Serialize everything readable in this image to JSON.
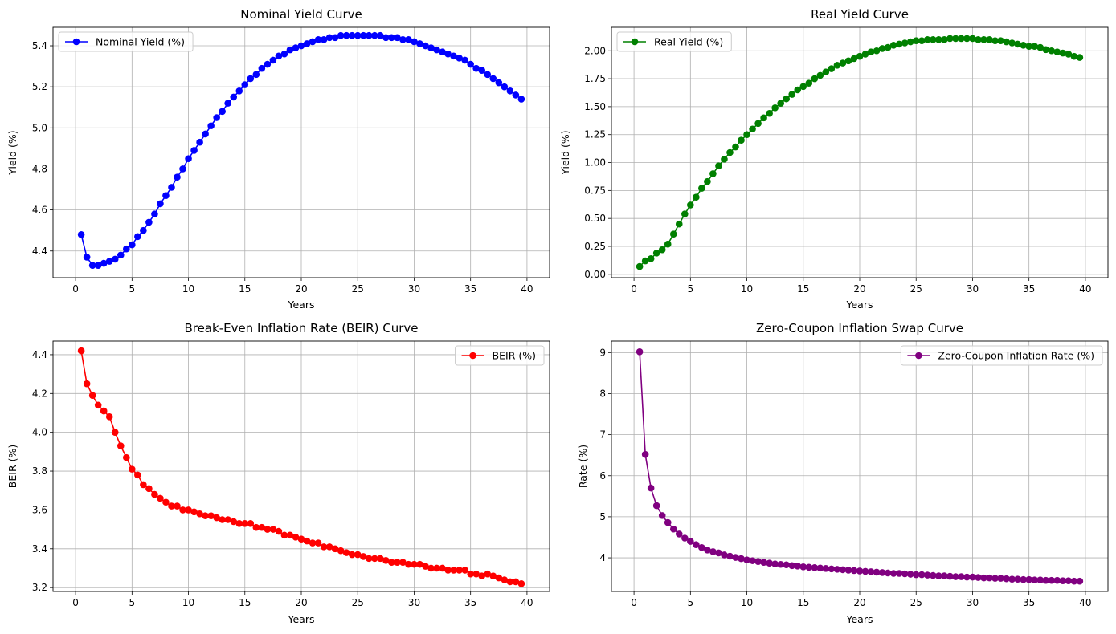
{
  "figure": {
    "charts": [
      {
        "type": "line",
        "title": "Nominal Yield Curve",
        "xlabel": "Years",
        "ylabel": "Yield (%)",
        "color": "#0000ff",
        "legend": "Nominal Yield (%)",
        "legend_position": "upper-left",
        "xlim": [
          -2,
          42
        ],
        "ylim": [
          4.27,
          5.49
        ],
        "xticks": [
          0,
          5,
          10,
          15,
          20,
          25,
          30,
          35,
          40
        ],
        "yticks": [
          4.4,
          4.6,
          4.8,
          5.0,
          5.2,
          5.4
        ],
        "ytick_labels": [
          "4.4",
          "4.6",
          "4.8",
          "5.0",
          "5.2",
          "5.4"
        ],
        "grid": true,
        "x": [
          0.5,
          1,
          1.5,
          2,
          2.5,
          3,
          3.5,
          4,
          4.5,
          5,
          5.5,
          6,
          6.5,
          7,
          7.5,
          8,
          8.5,
          9,
          9.5,
          10,
          10.5,
          11,
          11.5,
          12,
          12.5,
          13,
          13.5,
          14,
          14.5,
          15,
          15.5,
          16,
          16.5,
          17,
          17.5,
          18,
          18.5,
          19,
          19.5,
          20,
          20.5,
          21,
          21.5,
          22,
          22.5,
          23,
          23.5,
          24,
          24.5,
          25,
          25.5,
          26,
          26.5,
          27,
          27.5,
          28,
          28.5,
          29,
          29.5,
          30,
          30.5,
          31,
          31.5,
          32,
          32.5,
          33,
          33.5,
          34,
          34.5,
          35,
          35.5,
          36,
          36.5,
          37,
          37.5,
          38,
          38.5,
          39,
          39.5
        ],
        "y": [
          4.48,
          4.37,
          4.33,
          4.33,
          4.34,
          4.35,
          4.36,
          4.38,
          4.41,
          4.43,
          4.47,
          4.5,
          4.54,
          4.58,
          4.63,
          4.67,
          4.71,
          4.76,
          4.8,
          4.85,
          4.89,
          4.93,
          4.97,
          5.01,
          5.05,
          5.08,
          5.12,
          5.15,
          5.18,
          5.21,
          5.24,
          5.26,
          5.29,
          5.31,
          5.33,
          5.35,
          5.36,
          5.38,
          5.39,
          5.4,
          5.41,
          5.42,
          5.43,
          5.43,
          5.44,
          5.44,
          5.45,
          5.45,
          5.45,
          5.45,
          5.45,
          5.45,
          5.45,
          5.45,
          5.44,
          5.44,
          5.44,
          5.43,
          5.43,
          5.42,
          5.41,
          5.4,
          5.39,
          5.38,
          5.37,
          5.36,
          5.35,
          5.34,
          5.33,
          5.31,
          5.29,
          5.28,
          5.26,
          5.24,
          5.22,
          5.2,
          5.18,
          5.16,
          5.14
        ]
      },
      {
        "type": "line",
        "title": "Real Yield Curve",
        "xlabel": "Years",
        "ylabel": "Yield (%)",
        "color": "#008000",
        "legend": "Real Yield (%)",
        "legend_position": "upper-left",
        "xlim": [
          -2,
          42
        ],
        "ylim": [
          -0.03,
          2.21
        ],
        "xticks": [
          0,
          5,
          10,
          15,
          20,
          25,
          30,
          35,
          40
        ],
        "yticks": [
          0.0,
          0.25,
          0.5,
          0.75,
          1.0,
          1.25,
          1.5,
          1.75,
          2.0
        ],
        "ytick_labels": [
          "0.00",
          "0.25",
          "0.50",
          "0.75",
          "1.00",
          "1.25",
          "1.50",
          "1.75",
          "2.00"
        ],
        "grid": true,
        "x": [
          0.5,
          1,
          1.5,
          2,
          2.5,
          3,
          3.5,
          4,
          4.5,
          5,
          5.5,
          6,
          6.5,
          7,
          7.5,
          8,
          8.5,
          9,
          9.5,
          10,
          10.5,
          11,
          11.5,
          12,
          12.5,
          13,
          13.5,
          14,
          14.5,
          15,
          15.5,
          16,
          16.5,
          17,
          17.5,
          18,
          18.5,
          19,
          19.5,
          20,
          20.5,
          21,
          21.5,
          22,
          22.5,
          23,
          23.5,
          24,
          24.5,
          25,
          25.5,
          26,
          26.5,
          27,
          27.5,
          28,
          28.5,
          29,
          29.5,
          30,
          30.5,
          31,
          31.5,
          32,
          32.5,
          33,
          33.5,
          34,
          34.5,
          35,
          35.5,
          36,
          36.5,
          37,
          37.5,
          38,
          38.5,
          39,
          39.5
        ],
        "y": [
          0.07,
          0.12,
          0.14,
          0.19,
          0.22,
          0.27,
          0.36,
          0.45,
          0.54,
          0.62,
          0.69,
          0.77,
          0.83,
          0.9,
          0.97,
          1.03,
          1.09,
          1.14,
          1.2,
          1.25,
          1.3,
          1.35,
          1.4,
          1.44,
          1.49,
          1.53,
          1.57,
          1.61,
          1.65,
          1.68,
          1.71,
          1.75,
          1.78,
          1.81,
          1.84,
          1.87,
          1.89,
          1.91,
          1.93,
          1.95,
          1.97,
          1.99,
          2.0,
          2.02,
          2.03,
          2.05,
          2.06,
          2.07,
          2.08,
          2.09,
          2.09,
          2.1,
          2.1,
          2.1,
          2.1,
          2.11,
          2.11,
          2.11,
          2.11,
          2.11,
          2.1,
          2.1,
          2.1,
          2.09,
          2.09,
          2.08,
          2.07,
          2.06,
          2.05,
          2.04,
          2.04,
          2.03,
          2.01,
          2.0,
          1.99,
          1.98,
          1.97,
          1.95,
          1.94
        ]
      },
      {
        "type": "line",
        "title": "Break-Even Inflation Rate (BEIR) Curve",
        "xlabel": "Years",
        "ylabel": "BEIR (%)",
        "color": "#ff0000",
        "legend": "BEIR (%)",
        "legend_position": "upper-right",
        "xlim": [
          -2,
          42
        ],
        "ylim": [
          3.18,
          4.47
        ],
        "xticks": [
          0,
          5,
          10,
          15,
          20,
          25,
          30,
          35,
          40
        ],
        "yticks": [
          3.2,
          3.4,
          3.6,
          3.8,
          4.0,
          4.2,
          4.4
        ],
        "ytick_labels": [
          "3.2",
          "3.4",
          "3.6",
          "3.8",
          "4.0",
          "4.2",
          "4.4"
        ],
        "grid": true,
        "x": [
          0.5,
          1,
          1.5,
          2,
          2.5,
          3,
          3.5,
          4,
          4.5,
          5,
          5.5,
          6,
          6.5,
          7,
          7.5,
          8,
          8.5,
          9,
          9.5,
          10,
          10.5,
          11,
          11.5,
          12,
          12.5,
          13,
          13.5,
          14,
          14.5,
          15,
          15.5,
          16,
          16.5,
          17,
          17.5,
          18,
          18.5,
          19,
          19.5,
          20,
          20.5,
          21,
          21.5,
          22,
          22.5,
          23,
          23.5,
          24,
          24.5,
          25,
          25.5,
          26,
          26.5,
          27,
          27.5,
          28,
          28.5,
          29,
          29.5,
          30,
          30.5,
          31,
          31.5,
          32,
          32.5,
          33,
          33.5,
          34,
          34.5,
          35,
          35.5,
          36,
          36.5,
          37,
          37.5,
          38,
          38.5,
          39,
          39.5
        ],
        "y": [
          4.42,
          4.25,
          4.19,
          4.14,
          4.11,
          4.08,
          4.0,
          3.93,
          3.87,
          3.81,
          3.78,
          3.73,
          3.71,
          3.68,
          3.66,
          3.64,
          3.62,
          3.62,
          3.6,
          3.6,
          3.59,
          3.58,
          3.57,
          3.57,
          3.56,
          3.55,
          3.55,
          3.54,
          3.53,
          3.53,
          3.53,
          3.51,
          3.51,
          3.5,
          3.5,
          3.49,
          3.47,
          3.47,
          3.46,
          3.45,
          3.44,
          3.43,
          3.43,
          3.41,
          3.41,
          3.4,
          3.39,
          3.38,
          3.37,
          3.37,
          3.36,
          3.35,
          3.35,
          3.35,
          3.34,
          3.33,
          3.33,
          3.33,
          3.32,
          3.32,
          3.32,
          3.31,
          3.3,
          3.3,
          3.3,
          3.29,
          3.29,
          3.29,
          3.29,
          3.27,
          3.27,
          3.26,
          3.27,
          3.26,
          3.25,
          3.24,
          3.23,
          3.23,
          3.22
        ]
      },
      {
        "type": "line",
        "title": "Zero-Coupon Inflation Swap Curve",
        "xlabel": "Years",
        "ylabel": "Rate (%)",
        "color": "#800080",
        "legend": "Zero-Coupon Inflation Rate (%)",
        "legend_position": "upper-right",
        "xlim": [
          -2,
          42
        ],
        "ylim": [
          3.18,
          9.28
        ],
        "xticks": [
          0,
          5,
          10,
          15,
          20,
          25,
          30,
          35,
          40
        ],
        "yticks": [
          4,
          5,
          6,
          7,
          8,
          9
        ],
        "ytick_labels": [
          "4",
          "5",
          "6",
          "7",
          "8",
          "9"
        ],
        "grid": true,
        "x": [
          0.5,
          1,
          1.5,
          2,
          2.5,
          3,
          3.5,
          4,
          4.5,
          5,
          5.5,
          6,
          6.5,
          7,
          7.5,
          8,
          8.5,
          9,
          9.5,
          10,
          10.5,
          11,
          11.5,
          12,
          12.5,
          13,
          13.5,
          14,
          14.5,
          15,
          15.5,
          16,
          16.5,
          17,
          17.5,
          18,
          18.5,
          19,
          19.5,
          20,
          20.5,
          21,
          21.5,
          22,
          22.5,
          23,
          23.5,
          24,
          24.5,
          25,
          25.5,
          26,
          26.5,
          27,
          27.5,
          28,
          28.5,
          29,
          29.5,
          30,
          30.5,
          31,
          31.5,
          32,
          32.5,
          33,
          33.5,
          34,
          34.5,
          35,
          35.5,
          36,
          36.5,
          37,
          37.5,
          38,
          38.5,
          39,
          39.5
        ],
        "y": [
          9.02,
          6.52,
          5.7,
          5.27,
          5.03,
          4.86,
          4.7,
          4.58,
          4.48,
          4.4,
          4.32,
          4.25,
          4.19,
          4.15,
          4.12,
          4.07,
          4.04,
          4.01,
          3.98,
          3.95,
          3.93,
          3.91,
          3.89,
          3.87,
          3.85,
          3.84,
          3.83,
          3.81,
          3.8,
          3.78,
          3.77,
          3.76,
          3.75,
          3.74,
          3.73,
          3.72,
          3.71,
          3.7,
          3.69,
          3.68,
          3.67,
          3.66,
          3.65,
          3.64,
          3.63,
          3.62,
          3.62,
          3.61,
          3.6,
          3.59,
          3.59,
          3.58,
          3.57,
          3.56,
          3.56,
          3.55,
          3.54,
          3.54,
          3.53,
          3.53,
          3.52,
          3.51,
          3.51,
          3.5,
          3.5,
          3.49,
          3.48,
          3.48,
          3.47,
          3.47,
          3.46,
          3.46,
          3.45,
          3.45,
          3.45,
          3.44,
          3.44,
          3.43,
          3.43
        ]
      }
    ]
  }
}
